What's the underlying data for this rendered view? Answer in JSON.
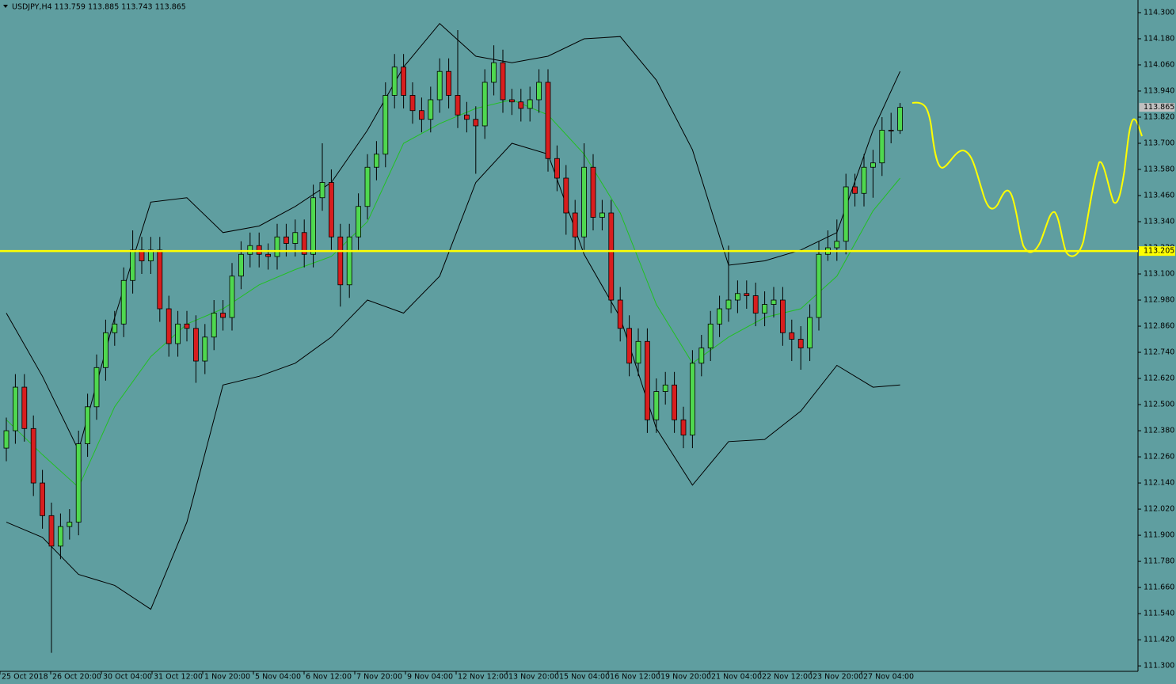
{
  "chart_data": {
    "type": "candlestick",
    "title": "USDJPY,H4  113.759 113.885 113.743 113.865",
    "time_labels": [
      "25 Oct 2018",
      "26 Oct 20:00",
      "30 Oct 04:00",
      "31 Oct 12:00",
      "1 Nov 20:00",
      "5 Nov 04:00",
      "6 Nov 12:00",
      "7 Nov 20:00",
      "9 Nov 04:00",
      "12 Nov 12:00",
      "13 Nov 20:00",
      "15 Nov 04:00",
      "16 Nov 12:00",
      "19 Nov 20:00",
      "21 Nov 04:00",
      "22 Nov 12:00",
      "23 Nov 20:00",
      "27 Nov 04:00"
    ],
    "open": [
      112.3,
      112.38,
      112.58,
      112.39,
      112.14,
      111.99,
      111.85,
      111.94,
      111.96,
      112.32,
      112.49,
      112.67,
      112.83,
      112.87,
      113.07,
      113.21,
      113.16,
      113.21,
      112.94,
      112.78,
      112.87,
      112.85,
      112.7,
      112.81,
      112.92,
      112.9,
      113.09,
      113.19,
      113.23,
      113.19,
      113.18,
      113.27,
      113.24,
      113.29,
      113.19,
      113.45,
      113.52,
      113.27,
      113.05,
      113.27,
      113.41,
      113.59,
      113.65,
      113.92,
      114.05,
      113.92,
      113.85,
      113.81,
      113.9,
      114.03,
      113.92,
      113.83,
      113.81,
      113.78,
      113.98,
      114.07,
      113.9,
      113.89,
      113.86,
      113.9,
      113.98,
      113.63,
      113.54,
      113.38,
      113.27,
      113.59,
      113.36,
      113.38,
      112.98,
      112.85,
      112.69,
      112.79,
      112.43,
      112.56,
      112.59,
      112.43,
      112.36,
      112.69,
      112.76,
      112.87,
      112.94,
      112.98,
      113.01,
      113.0,
      112.92,
      112.96,
      112.98,
      112.83,
      112.8,
      112.76,
      112.9,
      113.19,
      113.22,
      113.25,
      113.5,
      113.47,
      113.59,
      113.61,
      113.76,
      113.759
    ],
    "high": [
      112.44,
      112.64,
      112.64,
      112.45,
      112.2,
      112.05,
      112.0,
      112.02,
      112.38,
      112.55,
      112.73,
      112.89,
      112.93,
      113.13,
      113.3,
      113.27,
      113.27,
      113.27,
      113.0,
      112.93,
      112.93,
      112.91,
      112.87,
      112.98,
      112.98,
      113.15,
      113.25,
      113.29,
      113.29,
      113.24,
      113.33,
      113.33,
      113.35,
      113.35,
      113.51,
      113.7,
      113.58,
      113.33,
      113.33,
      113.47,
      113.65,
      113.71,
      113.98,
      114.11,
      114.11,
      113.98,
      113.91,
      113.96,
      114.09,
      114.09,
      114.22,
      113.89,
      113.87,
      114.04,
      114.15,
      114.13,
      113.95,
      113.95,
      113.96,
      114.04,
      114.04,
      113.69,
      113.6,
      113.44,
      113.7,
      113.65,
      113.44,
      113.44,
      113.04,
      112.91,
      112.85,
      112.85,
      112.62,
      112.65,
      112.65,
      112.49,
      112.75,
      112.82,
      112.93,
      113.0,
      113.23,
      113.07,
      113.07,
      113.06,
      113.02,
      113.04,
      113.04,
      112.89,
      112.86,
      112.96,
      113.25,
      113.3,
      113.35,
      113.56,
      113.56,
      113.65,
      113.67,
      113.82,
      113.84,
      113.885
    ],
    "low": [
      112.24,
      112.32,
      112.33,
      112.08,
      111.93,
      111.36,
      111.79,
      111.88,
      111.9,
      112.26,
      112.43,
      112.61,
      112.77,
      112.81,
      113.01,
      113.1,
      113.1,
      112.88,
      112.72,
      112.72,
      112.79,
      112.6,
      112.64,
      112.75,
      112.84,
      112.84,
      113.03,
      113.13,
      113.13,
      113.12,
      113.12,
      113.18,
      113.18,
      113.13,
      113.13,
      113.39,
      113.21,
      112.95,
      112.99,
      113.21,
      113.35,
      113.53,
      113.59,
      113.86,
      113.86,
      113.79,
      113.75,
      113.75,
      113.84,
      113.86,
      113.77,
      113.75,
      113.56,
      113.72,
      113.92,
      113.84,
      113.83,
      113.8,
      113.8,
      113.84,
      113.57,
      113.48,
      113.28,
      113.21,
      113.21,
      113.3,
      113.3,
      112.92,
      112.79,
      112.63,
      112.63,
      112.37,
      112.37,
      112.5,
      112.37,
      112.3,
      112.3,
      112.63,
      112.7,
      112.81,
      112.88,
      112.92,
      112.94,
      112.86,
      112.86,
      112.9,
      112.77,
      112.7,
      112.66,
      112.7,
      112.84,
      113.16,
      113.16,
      113.19,
      113.41,
      113.41,
      113.45,
      113.55,
      113.7,
      113.743
    ],
    "close": [
      112.38,
      112.58,
      112.39,
      112.14,
      111.99,
      111.85,
      111.94,
      111.96,
      112.32,
      112.49,
      112.67,
      112.83,
      112.87,
      113.07,
      113.21,
      113.16,
      113.21,
      112.94,
      112.78,
      112.87,
      112.85,
      112.7,
      112.81,
      112.92,
      112.9,
      113.09,
      113.19,
      113.23,
      113.19,
      113.18,
      113.27,
      113.24,
      113.29,
      113.19,
      113.45,
      113.52,
      113.27,
      113.05,
      113.27,
      113.41,
      113.59,
      113.65,
      113.92,
      114.05,
      113.92,
      113.85,
      113.81,
      113.9,
      114.03,
      113.92,
      113.83,
      113.81,
      113.78,
      113.98,
      114.07,
      113.9,
      113.89,
      113.86,
      113.9,
      113.98,
      113.63,
      113.54,
      113.38,
      113.27,
      113.59,
      113.36,
      113.38,
      112.98,
      112.85,
      112.69,
      112.79,
      112.43,
      112.56,
      112.59,
      112.43,
      112.36,
      112.69,
      112.76,
      112.87,
      112.94,
      112.98,
      113.01,
      113.0,
      112.92,
      112.96,
      112.98,
      112.83,
      112.8,
      112.76,
      112.9,
      113.19,
      113.22,
      113.25,
      113.5,
      113.47,
      113.59,
      113.61,
      113.76,
      113.759,
      113.865
    ],
    "up_color": "#4fd84f",
    "down_color": "#d81e1e",
    "bands": [
      {
        "color": "#000000",
        "x": [
          0,
          4,
          8,
          12,
          16,
          20,
          24,
          28,
          32,
          36,
          40,
          44,
          48,
          52,
          56,
          60,
          64,
          68,
          72,
          76,
          80,
          84,
          88,
          92,
          96,
          99
        ],
        "values": [
          112.92,
          112.63,
          112.29,
          112.9,
          113.43,
          113.45,
          113.29,
          113.32,
          113.41,
          113.52,
          113.76,
          114.05,
          114.25,
          114.1,
          114.07,
          114.1,
          114.18,
          114.19,
          113.99,
          113.67,
          113.14,
          113.16,
          113.21,
          113.29,
          113.76,
          114.03
        ]
      },
      {
        "color": "#22c022",
        "x": [
          0,
          4,
          8,
          12,
          16,
          20,
          24,
          28,
          32,
          36,
          40,
          44,
          48,
          52,
          56,
          60,
          64,
          68,
          72,
          76,
          80,
          84,
          88,
          92,
          96,
          99
        ],
        "values": [
          112.43,
          112.27,
          112.12,
          112.49,
          112.72,
          112.87,
          112.94,
          113.05,
          113.12,
          113.18,
          113.34,
          113.7,
          113.79,
          113.86,
          113.9,
          113.83,
          113.65,
          113.38,
          112.96,
          112.69,
          112.81,
          112.9,
          112.94,
          113.09,
          113.39,
          113.54
        ]
      },
      {
        "color": "#000000",
        "x": [
          0,
          4,
          8,
          12,
          16,
          20,
          24,
          28,
          32,
          36,
          40,
          44,
          48,
          52,
          56,
          60,
          64,
          68,
          72,
          76,
          80,
          84,
          88,
          92,
          96,
          99
        ],
        "values": [
          111.96,
          111.89,
          111.72,
          111.67,
          111.56,
          111.96,
          112.59,
          112.63,
          112.69,
          112.81,
          112.98,
          112.92,
          113.09,
          113.52,
          113.7,
          113.65,
          113.19,
          112.9,
          112.39,
          112.13,
          112.33,
          112.34,
          112.47,
          112.68,
          112.58,
          112.59
        ]
      }
    ],
    "ylim": [
      111.275,
      114.358
    ],
    "yticks": [
      {
        "value": 114.3,
        "label": "114.300"
      },
      {
        "value": 114.18,
        "label": "114.180"
      },
      {
        "value": 114.06,
        "label": "114.060"
      },
      {
        "value": 113.94,
        "label": "113.940"
      },
      {
        "value": 113.82,
        "label": "113.820"
      },
      {
        "value": 113.7,
        "label": "113.700"
      },
      {
        "value": 113.58,
        "label": "113.580"
      },
      {
        "value": 113.46,
        "label": "113.460"
      },
      {
        "value": 113.34,
        "label": "113.340"
      },
      {
        "value": 113.22,
        "label": "113.220"
      },
      {
        "value": 113.1,
        "label": "113.100"
      },
      {
        "value": 112.98,
        "label": "112.980"
      },
      {
        "value": 112.86,
        "label": "112.860"
      },
      {
        "value": 112.74,
        "label": "112.740"
      },
      {
        "value": 112.62,
        "label": "112.620"
      },
      {
        "value": 112.5,
        "label": "112.500"
      },
      {
        "value": 112.38,
        "label": "112.380"
      },
      {
        "value": 112.26,
        "label": "112.260"
      },
      {
        "value": 112.14,
        "label": "112.140"
      },
      {
        "value": 112.02,
        "label": "112.020"
      },
      {
        "value": 111.9,
        "label": "111.900"
      },
      {
        "value": 111.78,
        "label": "111.780"
      },
      {
        "value": 111.66,
        "label": "111.660"
      },
      {
        "value": 111.54,
        "label": "111.540"
      },
      {
        "value": 111.42,
        "label": "111.420"
      },
      {
        "value": 111.3,
        "label": "111.300"
      }
    ],
    "price_line": {
      "value": 113.205,
      "label": "113.205",
      "color": "#ffff00"
    },
    "last_price": {
      "value": 113.865,
      "label": "113.865"
    }
  }
}
